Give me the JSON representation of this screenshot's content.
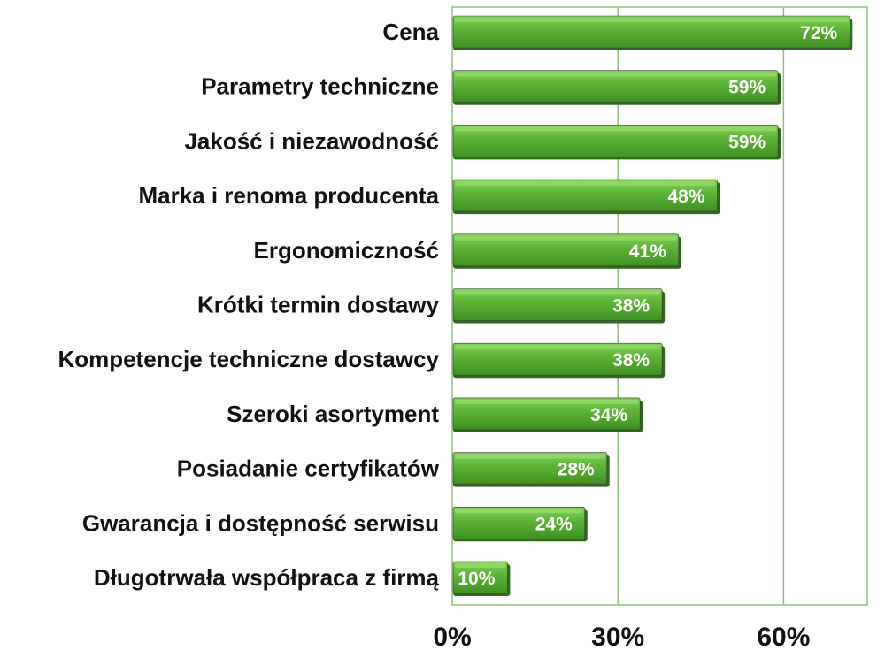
{
  "chart_data": {
    "type": "bar",
    "orientation": "horizontal",
    "categories": [
      "Cena",
      "Parametry techniczne",
      "Jakość i niezawodność",
      "Marka i renoma producenta",
      "Ergonomiczność",
      "Krótki termin dostawy",
      "Kompetencje techniczne dostawcy",
      "Szeroki asortyment",
      "Posiadanie certyfikatów",
      "Gwarancja i dostępność serwisu",
      "Długotrwała współpraca z firmą"
    ],
    "values": [
      72,
      59,
      59,
      48,
      41,
      38,
      38,
      34,
      28,
      24,
      10
    ],
    "value_labels": [
      "72%",
      "59%",
      "59%",
      "48%",
      "41%",
      "38%",
      "38%",
      "34%",
      "28%",
      "24%",
      "10%"
    ],
    "x_ticks": [
      0,
      30,
      60
    ],
    "x_tick_labels": [
      "0%",
      "30%",
      "60%"
    ],
    "xlim": [
      0,
      75
    ],
    "grid": "vertical",
    "colors": {
      "bar_light": "#6cc044",
      "bar_mid": "#4ea42c",
      "bar_dark": "#2f6a1a",
      "bar_edge": "#3a3a3a",
      "grid": "#8ec07a",
      "frame": "#8ec07a"
    }
  }
}
